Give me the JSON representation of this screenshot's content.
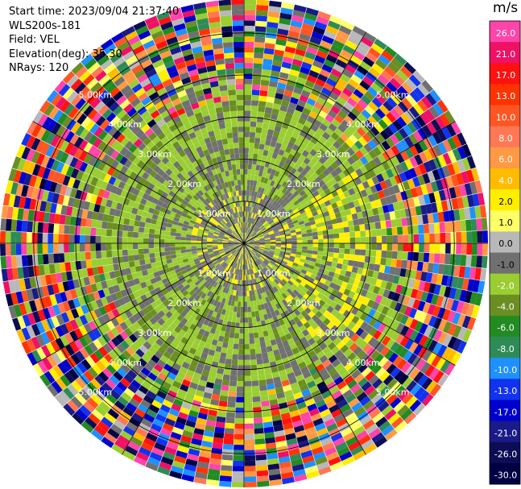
{
  "header": {
    "start_time": "Start time: 2023/09/04 21:37:40",
    "instrument": "WLS200s-181",
    "field": "Field: VEL",
    "elevation": "Elevation(deg): 35.30",
    "nrays": "NRays: 120"
  },
  "colorbar": {
    "unit": "m/s",
    "ticks": [
      "26.0",
      "21.0",
      "17.0",
      "13.0",
      "10.0",
      "8.0",
      "6.0",
      "4.0",
      "2.0",
      "1.0",
      "0.0",
      "-1.0",
      "-2.0",
      "-4.0",
      "-6.0",
      "-8.0",
      "-10.0",
      "-13.0",
      "-17.0",
      "-21.0",
      "-26.0",
      "-30.0"
    ],
    "colors": [
      "#ff44aa",
      "#ee1166",
      "#ff1111",
      "#ff3300",
      "#ff5522",
      "#ff7755",
      "#ff9944",
      "#ffbb00",
      "#ffee00",
      "#ffff66",
      "#b8b8b8",
      "#707070",
      "#9acd32",
      "#6b8e23",
      "#228b22",
      "#2e8b57",
      "#1e90ff",
      "#1133ee",
      "#0000cc",
      "#1a1a88",
      "#0d0d55",
      "#000044"
    ]
  },
  "chart_data": {
    "type": "heatmap",
    "projection": "polar PPI",
    "field": "VEL",
    "nrays": 120,
    "range_rings_km": [
      1.0,
      2.0,
      3.0,
      4.0,
      5.0
    ],
    "ring_labels": [
      "1.00km",
      "2.00km",
      "3.00km",
      "4.00km",
      "5.00km"
    ],
    "max_range_km": 5.8,
    "value_range": [
      -30,
      26
    ],
    "grid": true,
    "legend": "right"
  }
}
